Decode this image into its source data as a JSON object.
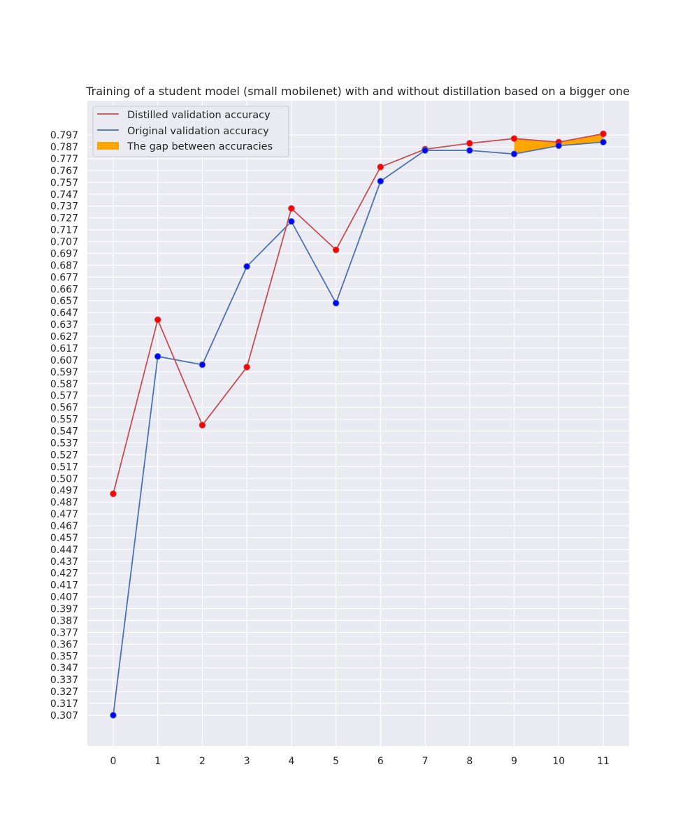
{
  "chart_data": {
    "type": "line",
    "title": "Training of a student model (small mobilenet) with and without distillation based on a bigger one",
    "xlabel": "",
    "ylabel": "",
    "x": [
      0,
      1,
      2,
      3,
      4,
      5,
      6,
      7,
      8,
      9,
      10,
      11
    ],
    "x_ticks": [
      "0",
      "1",
      "2",
      "3",
      "4",
      "5",
      "6",
      "7",
      "8",
      "9",
      "10",
      "11"
    ],
    "xlim": [
      -0.58,
      11.58
    ],
    "ylim": [
      0.281,
      0.826
    ],
    "y_ticks": [
      "0.307",
      "0.317",
      "0.327",
      "0.337",
      "0.347",
      "0.357",
      "0.367",
      "0.377",
      "0.387",
      "0.397",
      "0.407",
      "0.417",
      "0.427",
      "0.437",
      "0.447",
      "0.457",
      "0.467",
      "0.477",
      "0.487",
      "0.497",
      "0.507",
      "0.517",
      "0.527",
      "0.537",
      "0.547",
      "0.557",
      "0.567",
      "0.577",
      "0.587",
      "0.597",
      "0.607",
      "0.617",
      "0.627",
      "0.637",
      "0.647",
      "0.657",
      "0.667",
      "0.677",
      "0.687",
      "0.697",
      "0.707",
      "0.717",
      "0.727",
      "0.737",
      "0.747",
      "0.757",
      "0.767",
      "0.777",
      "0.787",
      "0.797"
    ],
    "grid": true,
    "legend_position": "top-left",
    "series": [
      {
        "name": "Distilled validation accuracy",
        "color": "#c44e52",
        "marker_color": "#ff0000",
        "values": [
          0.494,
          0.641,
          0.552,
          0.601,
          0.735,
          0.7,
          0.77,
          0.785,
          0.79,
          0.794,
          0.791,
          0.798
        ]
      },
      {
        "name": "Original validation accuracy",
        "color": "#4c72b0",
        "marker_color": "#0000ff",
        "values": [
          0.307,
          0.61,
          0.603,
          0.686,
          0.724,
          0.655,
          0.758,
          0.784,
          0.784,
          0.781,
          0.788,
          0.791
        ]
      }
    ],
    "fill_between": {
      "name": "The gap between accuracies",
      "color": "#ffa500",
      "x_from": 9,
      "x_to": 11
    }
  }
}
